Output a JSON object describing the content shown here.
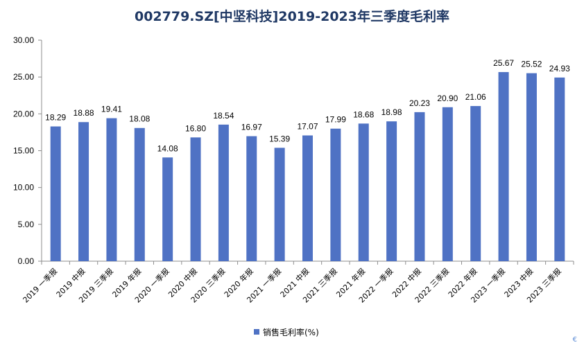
{
  "chart_data": {
    "type": "bar",
    "title": "002779.SZ[中坚科技]2019-2023年三季度毛利率",
    "categories": [
      "2019 一季报",
      "2019 中报",
      "2019 三季报",
      "2019 年报",
      "2020 一季报",
      "2020 中报",
      "2020 三季报",
      "2020 年报",
      "2021 一季报",
      "2021 中报",
      "2021 三季报",
      "2021 年报",
      "2022 一季报",
      "2022 中报",
      "2022 三季报",
      "2022 年报",
      "2023 一季报",
      "2023 中报",
      "2023 三季报"
    ],
    "series": [
      {
        "name": "销售毛利率(%)",
        "values": [
          18.29,
          18.88,
          19.41,
          18.08,
          14.08,
          16.8,
          18.54,
          16.97,
          15.39,
          17.07,
          17.99,
          18.68,
          18.98,
          20.23,
          20.9,
          21.06,
          25.67,
          25.52,
          24.93
        ],
        "value_labels": [
          "18.29",
          "18.88",
          "19.41",
          "18.08",
          "14.08",
          "16.80",
          "18.54",
          "16.97",
          "15.39",
          "17.07",
          "17.99",
          "18.68",
          "18.98",
          "20.23",
          "20.90",
          "21.06",
          "25.67",
          "25.52",
          "24.93"
        ]
      }
    ],
    "ylim": [
      0,
      30
    ],
    "yticks": [
      0,
      5,
      10,
      15,
      20,
      25,
      30
    ],
    "ytick_labels": [
      "0.00",
      "5.00",
      "10.00",
      "15.00",
      "20.00",
      "25.00",
      "30.00"
    ],
    "xlabel": "",
    "ylabel": "",
    "grid": false,
    "legend_position": "bottom-center",
    "colors": {
      "bar": "#4f72c4",
      "title": "#1f3864",
      "axis": "#8c8c8c",
      "corner_mark": "#5b8bd6"
    }
  },
  "corner_mark": "€"
}
